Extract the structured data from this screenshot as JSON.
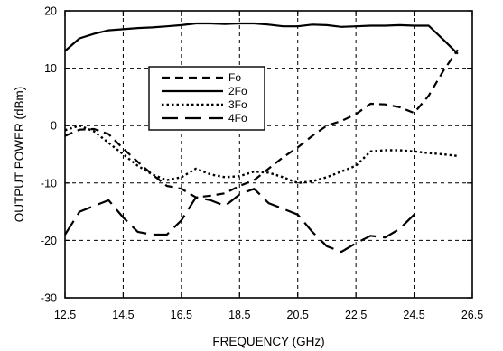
{
  "chart_data": {
    "type": "line",
    "title": "",
    "xlabel": "FREQUENCY (GHz)",
    "ylabel": "OUTPUT POWER (dBm)",
    "xlim": [
      12.5,
      26.5
    ],
    "ylim": [
      -30,
      20
    ],
    "xticks": [
      "12.5",
      "14.5",
      "16.5",
      "18.5",
      "20.5",
      "22.5",
      "24.5",
      "26.5"
    ],
    "xtick_values": [
      12.5,
      14.5,
      16.5,
      18.5,
      20.5,
      22.5,
      24.5,
      26.5
    ],
    "yticks": [
      "20",
      "10",
      "0",
      "-10",
      "-20",
      "-30"
    ],
    "ytick_values": [
      20,
      10,
      0,
      -10,
      -20,
      -30
    ],
    "grid": true,
    "legend_position": "upper-center",
    "series": [
      {
        "name": "Fo",
        "dash": "dashed",
        "x": [
          12.5,
          13.0,
          13.5,
          14.0,
          14.5,
          15.0,
          15.5,
          16.0,
          16.5,
          17.0,
          17.5,
          18.0,
          18.5,
          19.0,
          19.5,
          20.0,
          20.5,
          21.0,
          21.5,
          22.0,
          22.5,
          23.0,
          23.5,
          24.0,
          24.5,
          25.0,
          25.5,
          26.0
        ],
        "y": [
          -1.8,
          -0.7,
          -0.6,
          -1.5,
          -4.0,
          -6.3,
          -8.5,
          -10.5,
          -11.0,
          -12.5,
          -12.2,
          -11.8,
          -10.5,
          -9.5,
          -7.5,
          -5.5,
          -3.8,
          -1.8,
          0.0,
          0.8,
          2.0,
          3.8,
          3.7,
          3.2,
          2.2,
          5.2,
          9.5,
          13.2
        ]
      },
      {
        "name": "2Fo",
        "dash": "solid",
        "x": [
          12.5,
          13.0,
          13.5,
          14.0,
          14.5,
          15.0,
          15.5,
          16.0,
          16.5,
          17.0,
          17.5,
          18.0,
          18.5,
          19.0,
          19.5,
          20.0,
          20.5,
          21.0,
          21.5,
          22.0,
          22.5,
          23.0,
          23.5,
          24.0,
          24.5,
          25.0,
          25.5,
          26.0
        ],
        "y": [
          13.0,
          15.2,
          16.0,
          16.6,
          16.8,
          17.0,
          17.1,
          17.3,
          17.5,
          17.8,
          17.8,
          17.7,
          17.8,
          17.8,
          17.6,
          17.3,
          17.3,
          17.6,
          17.5,
          17.2,
          17.3,
          17.4,
          17.4,
          17.5,
          17.4,
          17.4,
          15.0,
          12.5
        ]
      },
      {
        "name": "3Fo",
        "dash": "dotted",
        "x": [
          12.5,
          13.0,
          13.5,
          14.0,
          14.5,
          15.0,
          15.5,
          16.0,
          16.5,
          17.0,
          17.5,
          18.0,
          18.5,
          19.0,
          19.5,
          20.0,
          20.5,
          21.0,
          21.5,
          22.0,
          22.5,
          23.0,
          23.5,
          24.0,
          24.5,
          25.0,
          25.5,
          26.0
        ],
        "y": [
          -0.8,
          0.0,
          -1.0,
          -3.0,
          -5.0,
          -7.0,
          -8.5,
          -9.5,
          -9.0,
          -7.5,
          -8.5,
          -9.0,
          -8.8,
          -8.0,
          -8.2,
          -9.0,
          -10.0,
          -9.7,
          -9.0,
          -8.0,
          -7.0,
          -4.5,
          -4.3,
          -4.3,
          -4.5,
          -4.8,
          -5.0,
          -5.3
        ]
      },
      {
        "name": "4Fo",
        "dash": "long-dash",
        "x": [
          12.5,
          13.0,
          13.5,
          14.0,
          14.5,
          15.0,
          15.5,
          16.0,
          16.5,
          17.0,
          17.5,
          18.0,
          18.5,
          19.0,
          19.5,
          20.0,
          20.5,
          21.0,
          21.5,
          22.0,
          22.5,
          23.0,
          23.5,
          24.0,
          24.5
        ],
        "y": [
          -19.0,
          -15.0,
          -14.0,
          -13.0,
          -16.0,
          -18.5,
          -19.0,
          -19.0,
          -16.5,
          -12.5,
          -13.0,
          -14.0,
          -12.0,
          -11.0,
          -13.5,
          -14.5,
          -15.5,
          -18.5,
          -21.0,
          -22.0,
          -20.5,
          -19.2,
          -19.5,
          -18.0,
          -15.5
        ]
      }
    ]
  }
}
